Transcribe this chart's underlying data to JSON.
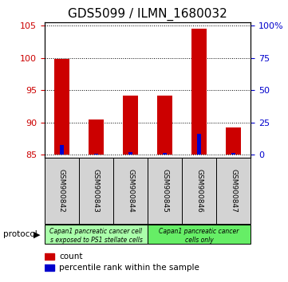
{
  "title": "GDS5099 / ILMN_1680032",
  "samples": [
    "GSM900842",
    "GSM900843",
    "GSM900844",
    "GSM900845",
    "GSM900846",
    "GSM900847"
  ],
  "red_values": [
    99.8,
    90.5,
    94.2,
    94.2,
    104.5,
    89.2
  ],
  "blue_values": [
    86.5,
    85.2,
    85.4,
    85.3,
    88.2,
    85.3
  ],
  "bar_bottom": 85.0,
  "ylim_min": 84.5,
  "ylim_max": 105.5,
  "y_ticks_left": [
    85,
    90,
    95,
    100,
    105
  ],
  "y_ticks_right": [
    0,
    25,
    50,
    75,
    100
  ],
  "red_color": "#cc0000",
  "blue_color": "#0000cc",
  "bar_width": 0.45,
  "blue_bar_width": 0.12,
  "group1_color": "#aaffaa",
  "group2_color": "#66ee66",
  "legend_count_label": "count",
  "legend_pct_label": "percentile rank within the sample",
  "tick_label_color_left": "#cc0000",
  "tick_label_color_right": "#0000cc",
  "title_fontsize": 11,
  "protocol_text": "protocol",
  "group1_label_line1": "Capan1 pancreatic cancer cell",
  "group1_label_line2": "s exposed to PS1 stellate cells",
  "group2_label_line1": "Capan1 pancreatic cancer",
  "group2_label_line2": "cells only"
}
